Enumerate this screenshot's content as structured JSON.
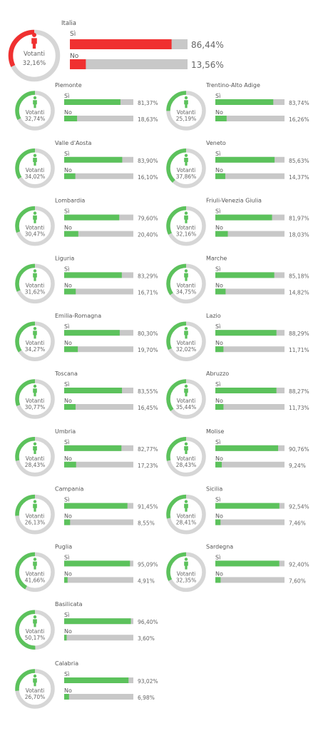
{
  "chart_data": {
    "type": "bar",
    "title": "",
    "label_votanti": "Votanti",
    "label_si": "Sì",
    "label_no": "No",
    "colors": {
      "national": "#f03030",
      "regional": "#5cc25c",
      "track": "#c8c8c8",
      "ring_track": "#d6d6d6"
    },
    "national": {
      "name": "Italia",
      "turnout": "32,16%",
      "si": "86,44%",
      "no": "13,56%",
      "turnout_value": 32.16,
      "si_value": 86.44,
      "no_value": 13.56
    },
    "regions": [
      {
        "name": "Piemonte",
        "turnout": "32,74%",
        "si": "81,37%",
        "no": "18,63%",
        "turnout_value": 32.74,
        "si_value": 81.37,
        "no_value": 18.63
      },
      {
        "name": "Trentino-Alto Adige",
        "turnout": "25,19%",
        "si": "83,74%",
        "no": "16,26%",
        "turnout_value": 25.19,
        "si_value": 83.74,
        "no_value": 16.26
      },
      {
        "name": "Valle d'Aosta",
        "turnout": "34,02%",
        "si": "83,90%",
        "no": "16,10%",
        "turnout_value": 34.02,
        "si_value": 83.9,
        "no_value": 16.1
      },
      {
        "name": "Veneto",
        "turnout": "37,86%",
        "si": "85,63%",
        "no": "14,37%",
        "turnout_value": 37.86,
        "si_value": 85.63,
        "no_value": 14.37
      },
      {
        "name": "Lombardia",
        "turnout": "30,47%",
        "si": "79,60%",
        "no": "20,40%",
        "turnout_value": 30.47,
        "si_value": 79.6,
        "no_value": 20.4
      },
      {
        "name": "Friuli-Venezia Giulia",
        "turnout": "32,16%",
        "si": "81,97%",
        "no": "18,03%",
        "turnout_value": 32.16,
        "si_value": 81.97,
        "no_value": 18.03
      },
      {
        "name": "Liguria",
        "turnout": "31,62%",
        "si": "83,29%",
        "no": "16,71%",
        "turnout_value": 31.62,
        "si_value": 83.29,
        "no_value": 16.71
      },
      {
        "name": "Marche",
        "turnout": "34,75%",
        "si": "85,18%",
        "no": "14,82%",
        "turnout_value": 34.75,
        "si_value": 85.18,
        "no_value": 14.82
      },
      {
        "name": "Emilia-Romagna",
        "turnout": "34,27%",
        "si": "80,30%",
        "no": "19,70%",
        "turnout_value": 34.27,
        "si_value": 80.3,
        "no_value": 19.7
      },
      {
        "name": "Lazio",
        "turnout": "32,02%",
        "si": "88,29%",
        "no": "11,71%",
        "turnout_value": 32.02,
        "si_value": 88.29,
        "no_value": 11.71
      },
      {
        "name": "Toscana",
        "turnout": "30,77%",
        "si": "83,55%",
        "no": "16,45%",
        "turnout_value": 30.77,
        "si_value": 83.55,
        "no_value": 16.45
      },
      {
        "name": "Abruzzo",
        "turnout": "35,44%",
        "si": "88,27%",
        "no": "11,73%",
        "turnout_value": 35.44,
        "si_value": 88.27,
        "no_value": 11.73
      },
      {
        "name": "Umbria",
        "turnout": "28,43%",
        "si": "82,77%",
        "no": "17,23%",
        "turnout_value": 28.43,
        "si_value": 82.77,
        "no_value": 17.23
      },
      {
        "name": "Molise",
        "turnout": "28,43%",
        "si": "90,76%",
        "no": "9,24%",
        "turnout_value": 28.43,
        "si_value": 90.76,
        "no_value": 9.24
      },
      {
        "name": "Campania",
        "turnout": "26,13%",
        "si": "91,45%",
        "no": "8,55%",
        "turnout_value": 26.13,
        "si_value": 91.45,
        "no_value": 8.55
      },
      {
        "name": "Sicilia",
        "turnout": "28,41%",
        "si": "92,54%",
        "no": "7,46%",
        "turnout_value": 28.41,
        "si_value": 92.54,
        "no_value": 7.46
      },
      {
        "name": "Puglia",
        "turnout": "41,66%",
        "si": "95,09%",
        "no": "4,91%",
        "turnout_value": 41.66,
        "si_value": 95.09,
        "no_value": 4.91
      },
      {
        "name": "Sardegna",
        "turnout": "32,35%",
        "si": "92,40%",
        "no": "7,60%",
        "turnout_value": 32.35,
        "si_value": 92.4,
        "no_value": 7.6
      },
      {
        "name": "Basilicata",
        "turnout": "50,17%",
        "si": "96,40%",
        "no": "3,60%",
        "turnout_value": 50.17,
        "si_value": 96.4,
        "no_value": 3.6
      },
      {
        "name": "Calabria",
        "turnout": "26,70%",
        "si": "93,02%",
        "no": "6,98%",
        "turnout_value": 26.7,
        "si_value": 93.02,
        "no_value": 6.98
      }
    ]
  }
}
